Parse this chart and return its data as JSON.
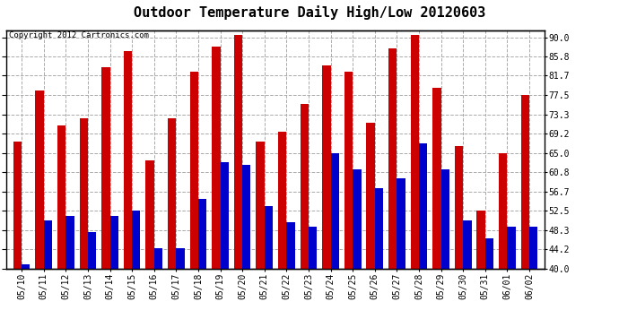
{
  "title": "Outdoor Temperature Daily High/Low 20120603",
  "copyright": "Copyright 2012 Cartronics.com",
  "dates": [
    "05/10",
    "05/11",
    "05/12",
    "05/13",
    "05/14",
    "05/15",
    "05/16",
    "05/17",
    "05/18",
    "05/19",
    "05/20",
    "05/21",
    "05/22",
    "05/23",
    "05/24",
    "05/25",
    "05/26",
    "05/27",
    "05/28",
    "05/29",
    "05/30",
    "05/31",
    "06/01",
    "06/02"
  ],
  "highs": [
    67.5,
    78.5,
    71.0,
    72.5,
    83.5,
    87.0,
    63.5,
    72.5,
    82.5,
    88.0,
    90.5,
    67.5,
    69.5,
    75.5,
    84.0,
    82.5,
    71.5,
    87.5,
    90.5,
    79.0,
    66.5,
    52.5,
    65.0,
    77.5
  ],
  "lows": [
    41.0,
    50.5,
    51.5,
    48.0,
    51.5,
    52.5,
    44.5,
    44.5,
    55.0,
    63.0,
    62.5,
    53.5,
    50.0,
    49.0,
    65.0,
    61.5,
    57.5,
    59.5,
    67.0,
    61.5,
    50.5,
    46.5,
    49.0,
    49.0
  ],
  "high_color": "#cc0000",
  "low_color": "#0000cc",
  "bg_color": "#ffffff",
  "plot_bg": "#ffffff",
  "grid_color": "#aaaaaa",
  "ylabel_right": [
    "90.0",
    "85.8",
    "81.7",
    "77.5",
    "73.3",
    "69.2",
    "65.0",
    "60.8",
    "56.7",
    "52.5",
    "48.3",
    "44.2",
    "40.0"
  ],
  "yticks": [
    90.0,
    85.8,
    81.7,
    77.5,
    73.3,
    69.2,
    65.0,
    60.8,
    56.7,
    52.5,
    48.3,
    44.2,
    40.0
  ],
  "ybase": 40.0,
  "ylim": [
    40.0,
    91.5
  ],
  "bar_width": 0.38,
  "title_fontsize": 11,
  "tick_fontsize": 7,
  "copyright_fontsize": 6.5
}
